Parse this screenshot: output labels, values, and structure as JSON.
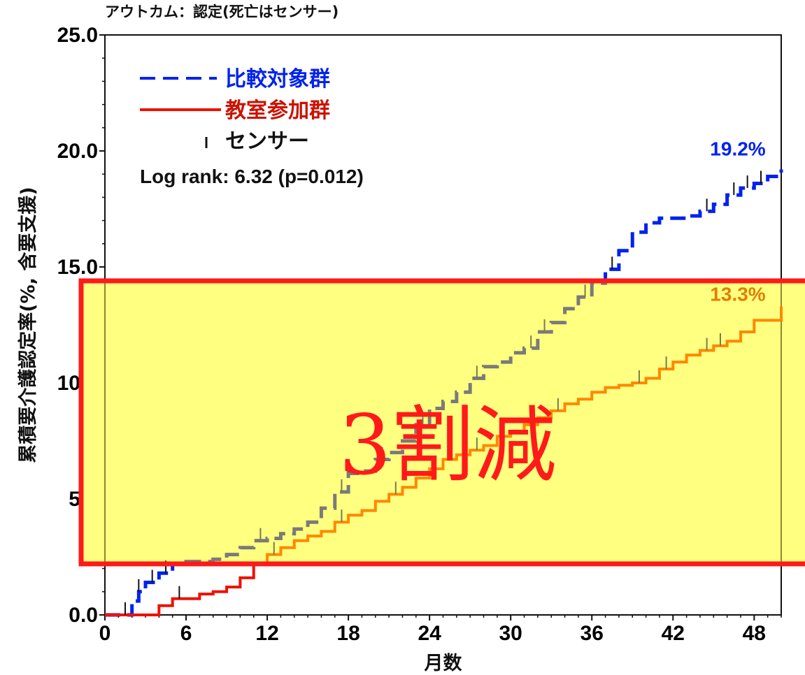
{
  "chart_data": {
    "type": "line",
    "title": "アウトカム：認定(死亡はセンサー)",
    "xlabel": "月数",
    "ylabel": "累積要介護認定率(%, 含要支援)",
    "xlim": [
      0,
      50
    ],
    "ylim": [
      0,
      25
    ],
    "x_ticks": [
      "0",
      "6",
      "12",
      "18",
      "24",
      "30",
      "36",
      "42",
      "48"
    ],
    "y_ticks": [
      "0.0",
      "5.0",
      "10.0",
      "15.0",
      "20.0",
      "25.0"
    ],
    "grid": false,
    "legend_position": "top-left",
    "legend": {
      "comparison": "比較対象群",
      "intervention": "教室参加群",
      "censor": "センサー"
    },
    "annotation_logrank": "Log rank: 6.32 (p=0.012)",
    "series": [
      {
        "name": "比較対象群",
        "color": "#0022ee",
        "style": "dashed",
        "end_label": "19.2%",
        "x": [
          0,
          2,
          2.5,
          3,
          4,
          5,
          6,
          7,
          8,
          9,
          10,
          11,
          12,
          13,
          14,
          15,
          16,
          17,
          18,
          19,
          20,
          21,
          22,
          23,
          24,
          25,
          26,
          27,
          28,
          29,
          30,
          31,
          32,
          33,
          34,
          35,
          36,
          37,
          38,
          39,
          40,
          41,
          42,
          43,
          44,
          45,
          46,
          47,
          48,
          49,
          50
        ],
        "y": [
          0,
          0.6,
          1.0,
          1.4,
          1.8,
          2.2,
          2.3,
          2.3,
          2.4,
          2.6,
          2.9,
          3.2,
          3.3,
          3.5,
          3.7,
          4.0,
          4.6,
          5.3,
          6.1,
          6.2,
          6.7,
          7.0,
          7.5,
          8.2,
          8.9,
          9.2,
          9.6,
          10.2,
          10.7,
          10.9,
          11.3,
          11.5,
          12.2,
          12.6,
          13.2,
          13.7,
          14.3,
          14.9,
          15.7,
          16.5,
          16.9,
          17.1,
          17.1,
          17.2,
          17.4,
          17.7,
          18.1,
          18.4,
          18.6,
          18.9,
          19.2
        ]
      },
      {
        "name": "教室参加群",
        "color": "#ee1100",
        "color_highlight": "#ff8800",
        "style": "solid",
        "end_label": "13.3%",
        "x": [
          0,
          4,
          5,
          7,
          8,
          9,
          10,
          11,
          12,
          13,
          14,
          15,
          16,
          17,
          18,
          19,
          20,
          21,
          22,
          23,
          24,
          25,
          26,
          27,
          28,
          29,
          30,
          31,
          32,
          33,
          34,
          35,
          36,
          37,
          38,
          39,
          40,
          41,
          42,
          43,
          44,
          45,
          46,
          47,
          48,
          50
        ],
        "y": [
          0,
          0.4,
          0.7,
          0.9,
          1.0,
          1.2,
          1.6,
          2.2,
          2.6,
          2.9,
          3.2,
          3.4,
          3.6,
          4.0,
          4.3,
          4.5,
          4.9,
          5.2,
          5.5,
          5.9,
          6.3,
          6.7,
          6.9,
          7.1,
          7.3,
          7.7,
          7.9,
          8.2,
          8.5,
          8.8,
          9.1,
          9.3,
          9.6,
          9.8,
          9.9,
          10.0,
          10.2,
          10.6,
          10.9,
          11.2,
          11.4,
          11.6,
          11.8,
          12.2,
          12.7,
          13.3
        ]
      }
    ],
    "censor_marks": {
      "comparison": [
        1.5,
        2.5,
        3.5,
        4.5,
        11.5,
        17.5,
        20.5,
        23.5,
        27.5,
        31.5,
        32.5,
        35.5,
        37.5,
        44.5,
        46.5,
        47.5,
        48.5
      ],
      "intervention": [
        5.5,
        12.5,
        17.5,
        21.5,
        27.5,
        33.5,
        39.5,
        41.5,
        44.5,
        45.5
      ]
    },
    "highlight_box": {
      "y_range": [
        2.2,
        14.4
      ],
      "fill": "#ffff80",
      "border": "#ff1a1a",
      "label": "3割減"
    }
  }
}
